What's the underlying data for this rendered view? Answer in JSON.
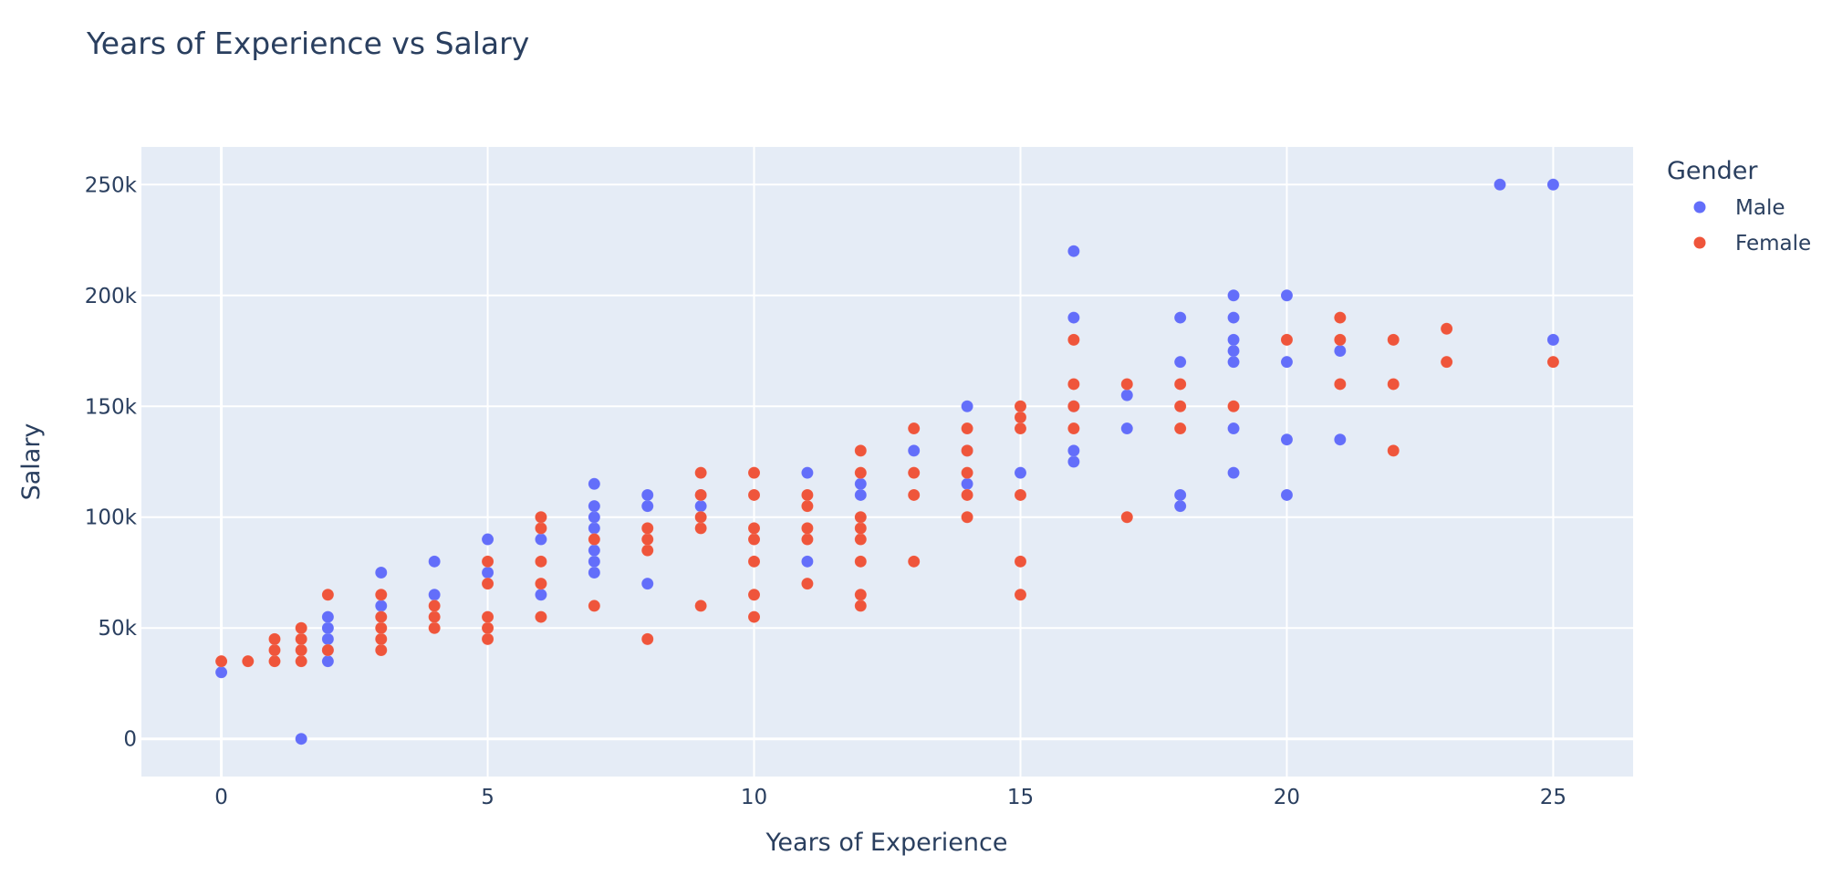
{
  "chart_data": {
    "type": "scatter",
    "title": "Years of Experience vs Salary",
    "xlabel": "Years of Experience",
    "ylabel": "Salary",
    "xlim": [
      -1.5,
      26.5
    ],
    "ylim": [
      -17000,
      267000
    ],
    "xticks": [
      0,
      5,
      10,
      15,
      20,
      25
    ],
    "xtick_labels": [
      "0",
      "5",
      "10",
      "15",
      "20",
      "25"
    ],
    "yticks": [
      0,
      50000,
      100000,
      150000,
      200000,
      250000
    ],
    "ytick_labels": [
      "0",
      "50k",
      "100k",
      "150k",
      "200k",
      "250k"
    ],
    "grid": true,
    "plot_bgcolor": "#e5ecf6",
    "grid_color": "#ffffff",
    "legend": {
      "title": "Gender",
      "placement": "right"
    },
    "series": [
      {
        "name": "Male",
        "color": "#636efa",
        "points": [
          [
            0,
            30000
          ],
          [
            1.5,
            0
          ],
          [
            2,
            35000
          ],
          [
            2,
            40000
          ],
          [
            2,
            45000
          ],
          [
            2,
            50000
          ],
          [
            2,
            55000
          ],
          [
            3,
            60000
          ],
          [
            3,
            75000
          ],
          [
            4,
            65000
          ],
          [
            4,
            80000
          ],
          [
            5,
            75000
          ],
          [
            5,
            90000
          ],
          [
            6,
            65000
          ],
          [
            6,
            90000
          ],
          [
            7,
            75000
          ],
          [
            7,
            80000
          ],
          [
            7,
            85000
          ],
          [
            7,
            95000
          ],
          [
            7,
            100000
          ],
          [
            7,
            105000
          ],
          [
            7,
            115000
          ],
          [
            8,
            70000
          ],
          [
            8,
            105000
          ],
          [
            8,
            110000
          ],
          [
            9,
            105000
          ],
          [
            9,
            110000
          ],
          [
            11,
            80000
          ],
          [
            11,
            120000
          ],
          [
            12,
            110000
          ],
          [
            12,
            115000
          ],
          [
            13,
            130000
          ],
          [
            14,
            115000
          ],
          [
            14,
            130000
          ],
          [
            14,
            150000
          ],
          [
            15,
            120000
          ],
          [
            16,
            125000
          ],
          [
            16,
            130000
          ],
          [
            16,
            150000
          ],
          [
            16,
            190000
          ],
          [
            16,
            220000
          ],
          [
            17,
            140000
          ],
          [
            17,
            155000
          ],
          [
            18,
            105000
          ],
          [
            18,
            110000
          ],
          [
            18,
            170000
          ],
          [
            18,
            190000
          ],
          [
            19,
            120000
          ],
          [
            19,
            140000
          ],
          [
            19,
            170000
          ],
          [
            19,
            175000
          ],
          [
            19,
            180000
          ],
          [
            19,
            190000
          ],
          [
            19,
            200000
          ],
          [
            20,
            110000
          ],
          [
            20,
            135000
          ],
          [
            20,
            170000
          ],
          [
            20,
            200000
          ],
          [
            21,
            135000
          ],
          [
            21,
            175000
          ],
          [
            24,
            250000
          ],
          [
            25,
            180000
          ],
          [
            25,
            250000
          ]
        ]
      },
      {
        "name": "Female",
        "color": "#ef553b",
        "points": [
          [
            0,
            35000
          ],
          [
            0.5,
            35000
          ],
          [
            1,
            35000
          ],
          [
            1,
            40000
          ],
          [
            1,
            45000
          ],
          [
            1.5,
            35000
          ],
          [
            1.5,
            40000
          ],
          [
            1.5,
            45000
          ],
          [
            1.5,
            50000
          ],
          [
            2,
            40000
          ],
          [
            2,
            65000
          ],
          [
            3,
            40000
          ],
          [
            3,
            45000
          ],
          [
            3,
            50000
          ],
          [
            3,
            55000
          ],
          [
            3,
            65000
          ],
          [
            4,
            50000
          ],
          [
            4,
            55000
          ],
          [
            4,
            60000
          ],
          [
            5,
            45000
          ],
          [
            5,
            50000
          ],
          [
            5,
            55000
          ],
          [
            5,
            70000
          ],
          [
            5,
            80000
          ],
          [
            6,
            55000
          ],
          [
            6,
            70000
          ],
          [
            6,
            80000
          ],
          [
            6,
            95000
          ],
          [
            6,
            100000
          ],
          [
            7,
            60000
          ],
          [
            7,
            90000
          ],
          [
            8,
            45000
          ],
          [
            8,
            85000
          ],
          [
            8,
            90000
          ],
          [
            8,
            95000
          ],
          [
            9,
            60000
          ],
          [
            9,
            95000
          ],
          [
            9,
            100000
          ],
          [
            9,
            110000
          ],
          [
            9,
            120000
          ],
          [
            10,
            55000
          ],
          [
            10,
            65000
          ],
          [
            10,
            80000
          ],
          [
            10,
            90000
          ],
          [
            10,
            95000
          ],
          [
            10,
            110000
          ],
          [
            10,
            120000
          ],
          [
            11,
            70000
          ],
          [
            11,
            90000
          ],
          [
            11,
            95000
          ],
          [
            11,
            105000
          ],
          [
            11,
            110000
          ],
          [
            12,
            60000
          ],
          [
            12,
            65000
          ],
          [
            12,
            80000
          ],
          [
            12,
            90000
          ],
          [
            12,
            95000
          ],
          [
            12,
            100000
          ],
          [
            12,
            120000
          ],
          [
            12,
            130000
          ],
          [
            13,
            80000
          ],
          [
            13,
            110000
          ],
          [
            13,
            120000
          ],
          [
            13,
            140000
          ],
          [
            14,
            100000
          ],
          [
            14,
            110000
          ],
          [
            14,
            120000
          ],
          [
            14,
            130000
          ],
          [
            14,
            140000
          ],
          [
            15,
            65000
          ],
          [
            15,
            80000
          ],
          [
            15,
            110000
          ],
          [
            15,
            140000
          ],
          [
            15,
            145000
          ],
          [
            15,
            150000
          ],
          [
            16,
            140000
          ],
          [
            16,
            150000
          ],
          [
            16,
            160000
          ],
          [
            16,
            180000
          ],
          [
            17,
            100000
          ],
          [
            17,
            160000
          ],
          [
            18,
            140000
          ],
          [
            18,
            150000
          ],
          [
            18,
            160000
          ],
          [
            19,
            150000
          ],
          [
            20,
            180000
          ],
          [
            21,
            160000
          ],
          [
            21,
            180000
          ],
          [
            21,
            190000
          ],
          [
            22,
            130000
          ],
          [
            22,
            160000
          ],
          [
            22,
            180000
          ],
          [
            23,
            170000
          ],
          [
            23,
            185000
          ],
          [
            25,
            170000
          ]
        ]
      }
    ]
  }
}
